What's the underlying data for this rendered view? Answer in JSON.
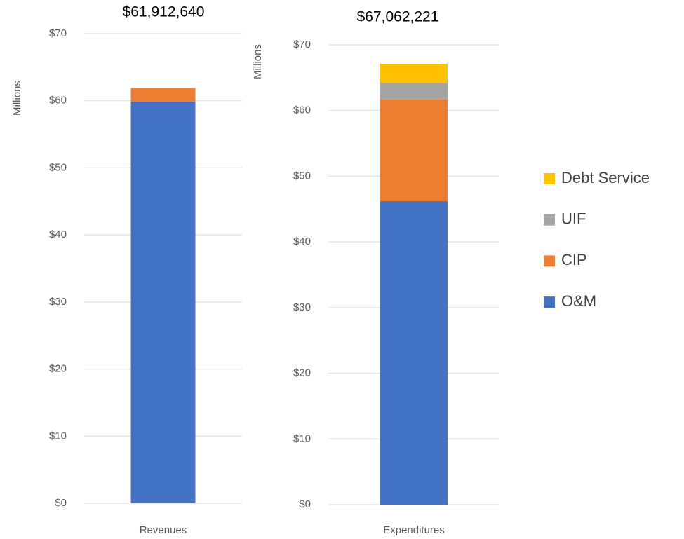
{
  "chart_data": [
    {
      "type": "bar",
      "stacked": true,
      "title": "$61,912,640",
      "y_label": "Millions",
      "categories": [
        "Revenues"
      ],
      "series": [
        {
          "name": "O&M",
          "color": "#4472c4",
          "values": [
            59.9
          ]
        },
        {
          "name": "CIP",
          "color": "#ed7d31",
          "values": [
            2.0
          ]
        }
      ],
      "ylim": [
        0,
        70
      ],
      "yticks": [
        {
          "value": 0,
          "label": "$0"
        },
        {
          "value": 10,
          "label": "$10"
        },
        {
          "value": 20,
          "label": "$20"
        },
        {
          "value": 30,
          "label": "$30"
        },
        {
          "value": 40,
          "label": "$40"
        },
        {
          "value": 50,
          "label": "$50"
        },
        {
          "value": 60,
          "label": "$60"
        },
        {
          "value": 70,
          "label": "$70"
        }
      ],
      "grid": true
    },
    {
      "type": "bar",
      "stacked": true,
      "title": "$67,062,221",
      "y_label": "Millions",
      "categories": [
        "Expenditures"
      ],
      "series": [
        {
          "name": "O&M",
          "color": "#4472c4",
          "values": [
            46.2
          ]
        },
        {
          "name": "CIP",
          "color": "#ed7d31",
          "values": [
            15.5
          ]
        },
        {
          "name": "UIF",
          "color": "#a5a5a5",
          "values": [
            2.5
          ]
        },
        {
          "name": "Debt Service",
          "color": "#ffc000",
          "values": [
            2.9
          ]
        }
      ],
      "ylim": [
        0,
        70
      ],
      "yticks": [
        {
          "value": 0,
          "label": "$0"
        },
        {
          "value": 10,
          "label": "$10"
        },
        {
          "value": 20,
          "label": "$20"
        },
        {
          "value": 30,
          "label": "$30"
        },
        {
          "value": 40,
          "label": "$40"
        },
        {
          "value": 50,
          "label": "$50"
        },
        {
          "value": 60,
          "label": "$60"
        },
        {
          "value": 70,
          "label": "$70"
        }
      ],
      "grid": true,
      "legend": "right"
    }
  ]
}
